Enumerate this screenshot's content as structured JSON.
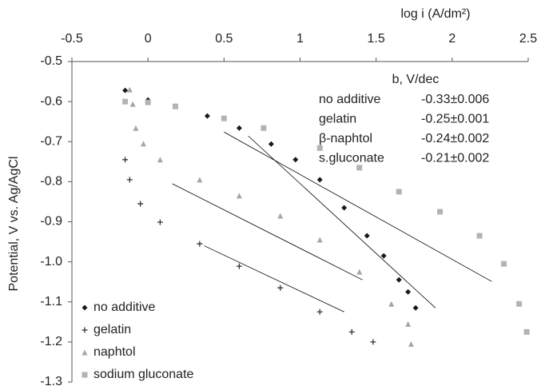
{
  "chart_data": {
    "type": "scatter",
    "x_label": "log i (A/dm²)",
    "y_label": "Potential, V vs. Ag/AgCl",
    "xlim": [
      -0.5,
      2.5
    ],
    "xticks": [
      -0.5,
      0,
      0.5,
      1,
      1.5,
      2,
      2.5
    ],
    "ylim": [
      -1.3,
      -0.5
    ],
    "yticks": [
      -0.5,
      -0.6,
      -0.7,
      -0.8,
      -0.9,
      {
        "value": -1,
        "label": "-1.0"
      },
      -1.1,
      -1.2,
      -1.3
    ],
    "x_axis_position": "top",
    "grid": false,
    "legend": "lower left",
    "series": [
      {
        "name": "no additive",
        "color": "#1a1a1a",
        "marker": "diamond",
        "x": [
          -0.15,
          0,
          0.18,
          0.39,
          0.6,
          0.81,
          0.97,
          1.13,
          1.29,
          1.44,
          1.55,
          1.65,
          1.71,
          1.76
        ],
        "values": [
          -0.572,
          -0.596,
          -0.612,
          -0.636,
          -0.666,
          -0.706,
          -0.745,
          -0.795,
          -0.865,
          -0.935,
          -0.985,
          -1.045,
          -1.075,
          -1.115
        ]
      },
      {
        "name": "gelatin",
        "color": "#333333",
        "marker": "plus",
        "x": [
          -0.15,
          -0.12,
          -0.05,
          0.08,
          0.34,
          0.6,
          0.87,
          1.13,
          1.34,
          1.48
        ],
        "values": [
          -0.745,
          -0.795,
          -0.855,
          -0.901,
          -0.955,
          -1.011,
          -1.065,
          -1.125,
          -1.175,
          -1.2
        ]
      },
      {
        "name": "naphtol",
        "color": "#a6a6a6",
        "marker": "triangle",
        "x": [
          -0.12,
          -0.1,
          -0.08,
          -0.03,
          0.08,
          0.34,
          0.6,
          0.87,
          1.13,
          1.39,
          1.6,
          1.71,
          1.73
        ],
        "values": [
          -0.57,
          -0.606,
          -0.666,
          -0.705,
          -0.745,
          -0.795,
          -0.835,
          -0.885,
          -0.945,
          -1.025,
          -1.105,
          -1.155,
          -1.205
        ]
      },
      {
        "name": "sodium gluconate",
        "color": "#b3b3b3",
        "marker": "square",
        "x": [
          -0.15,
          0,
          0.18,
          0.5,
          0.76,
          1.13,
          1.39,
          1.65,
          1.92,
          2.18,
          2.34,
          2.44,
          2.49
        ],
        "values": [
          -0.6,
          -0.602,
          -0.612,
          -0.642,
          -0.666,
          -0.716,
          -0.765,
          -0.825,
          -0.875,
          -0.935,
          -1.005,
          -1.105,
          -1.175
        ]
      }
    ],
    "fit_lines": [
      {
        "color": "#000000",
        "x": [
          0.5,
          2.26
        ],
        "values": [
          -0.676,
          -1.049
        ]
      },
      {
        "color": "#000000",
        "x": [
          0.66,
          1.89
        ],
        "values": [
          -0.686,
          -1.115
        ]
      },
      {
        "color": "#000000",
        "x": [
          0.16,
          1.41
        ],
        "values": [
          -0.805,
          -1.045
        ]
      },
      {
        "color": "#000000",
        "x": [
          0.37,
          1.29
        ],
        "values": [
          -0.96,
          -1.125
        ]
      }
    ],
    "annotation": {
      "header": "b, V/dec",
      "rows": [
        [
          "no additive",
          "-0.33±0.006"
        ],
        [
          "gelatin",
          "-0.25±0.001"
        ],
        [
          "β-naphtol",
          "-0.24±0.002"
        ],
        [
          "s.gluconate",
          "-0.21±0.002"
        ]
      ]
    }
  }
}
